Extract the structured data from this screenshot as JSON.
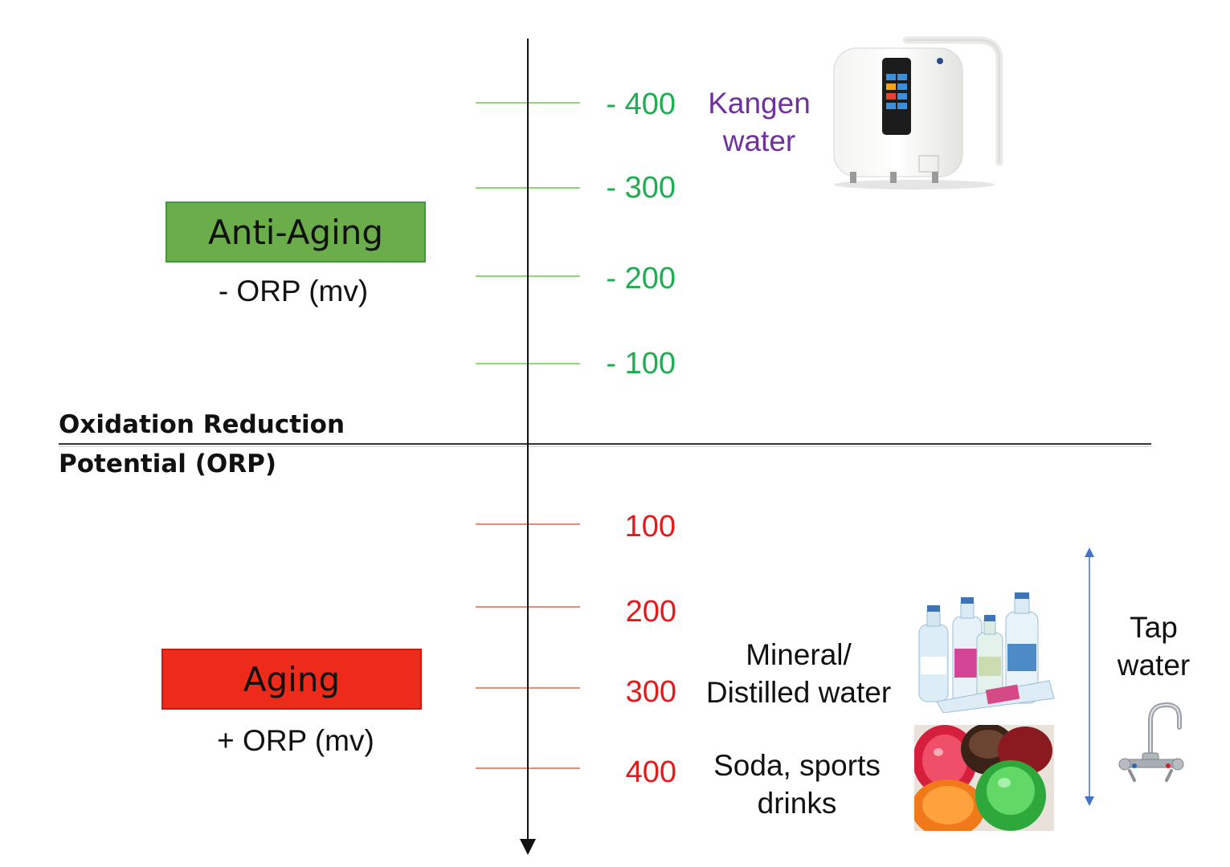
{
  "orp_label": {
    "line1": "Oxidation Reduction",
    "line2": "Potential (ORP)"
  },
  "anti_aging": {
    "label": "Anti-Aging",
    "unit": "- ORP (mv)",
    "color": "#6aad4a"
  },
  "aging": {
    "label": "Aging",
    "unit": "+ ORP (mv)",
    "color": "#ee2a1a"
  },
  "scale": {
    "negative": [
      "- 400",
      "- 300",
      "- 200",
      "- 100"
    ],
    "positive": [
      "100",
      "200",
      "300",
      "400"
    ],
    "negative_color": "#1fad52",
    "positive_color": "#e41a1a"
  },
  "items": {
    "kangen": {
      "line1": "Kangen",
      "line2": "water",
      "color": "#7030a0"
    },
    "mineral": {
      "line1": "Mineral/",
      "line2": "Distilled water"
    },
    "soda": {
      "line1": "Soda, sports",
      "line2": "drinks"
    },
    "tap": {
      "line1": "Tap",
      "line2": "water"
    }
  },
  "icons": [
    "water-ionizer-icon",
    "bottled-water-icon",
    "soda-drinks-icon",
    "faucet-icon"
  ]
}
